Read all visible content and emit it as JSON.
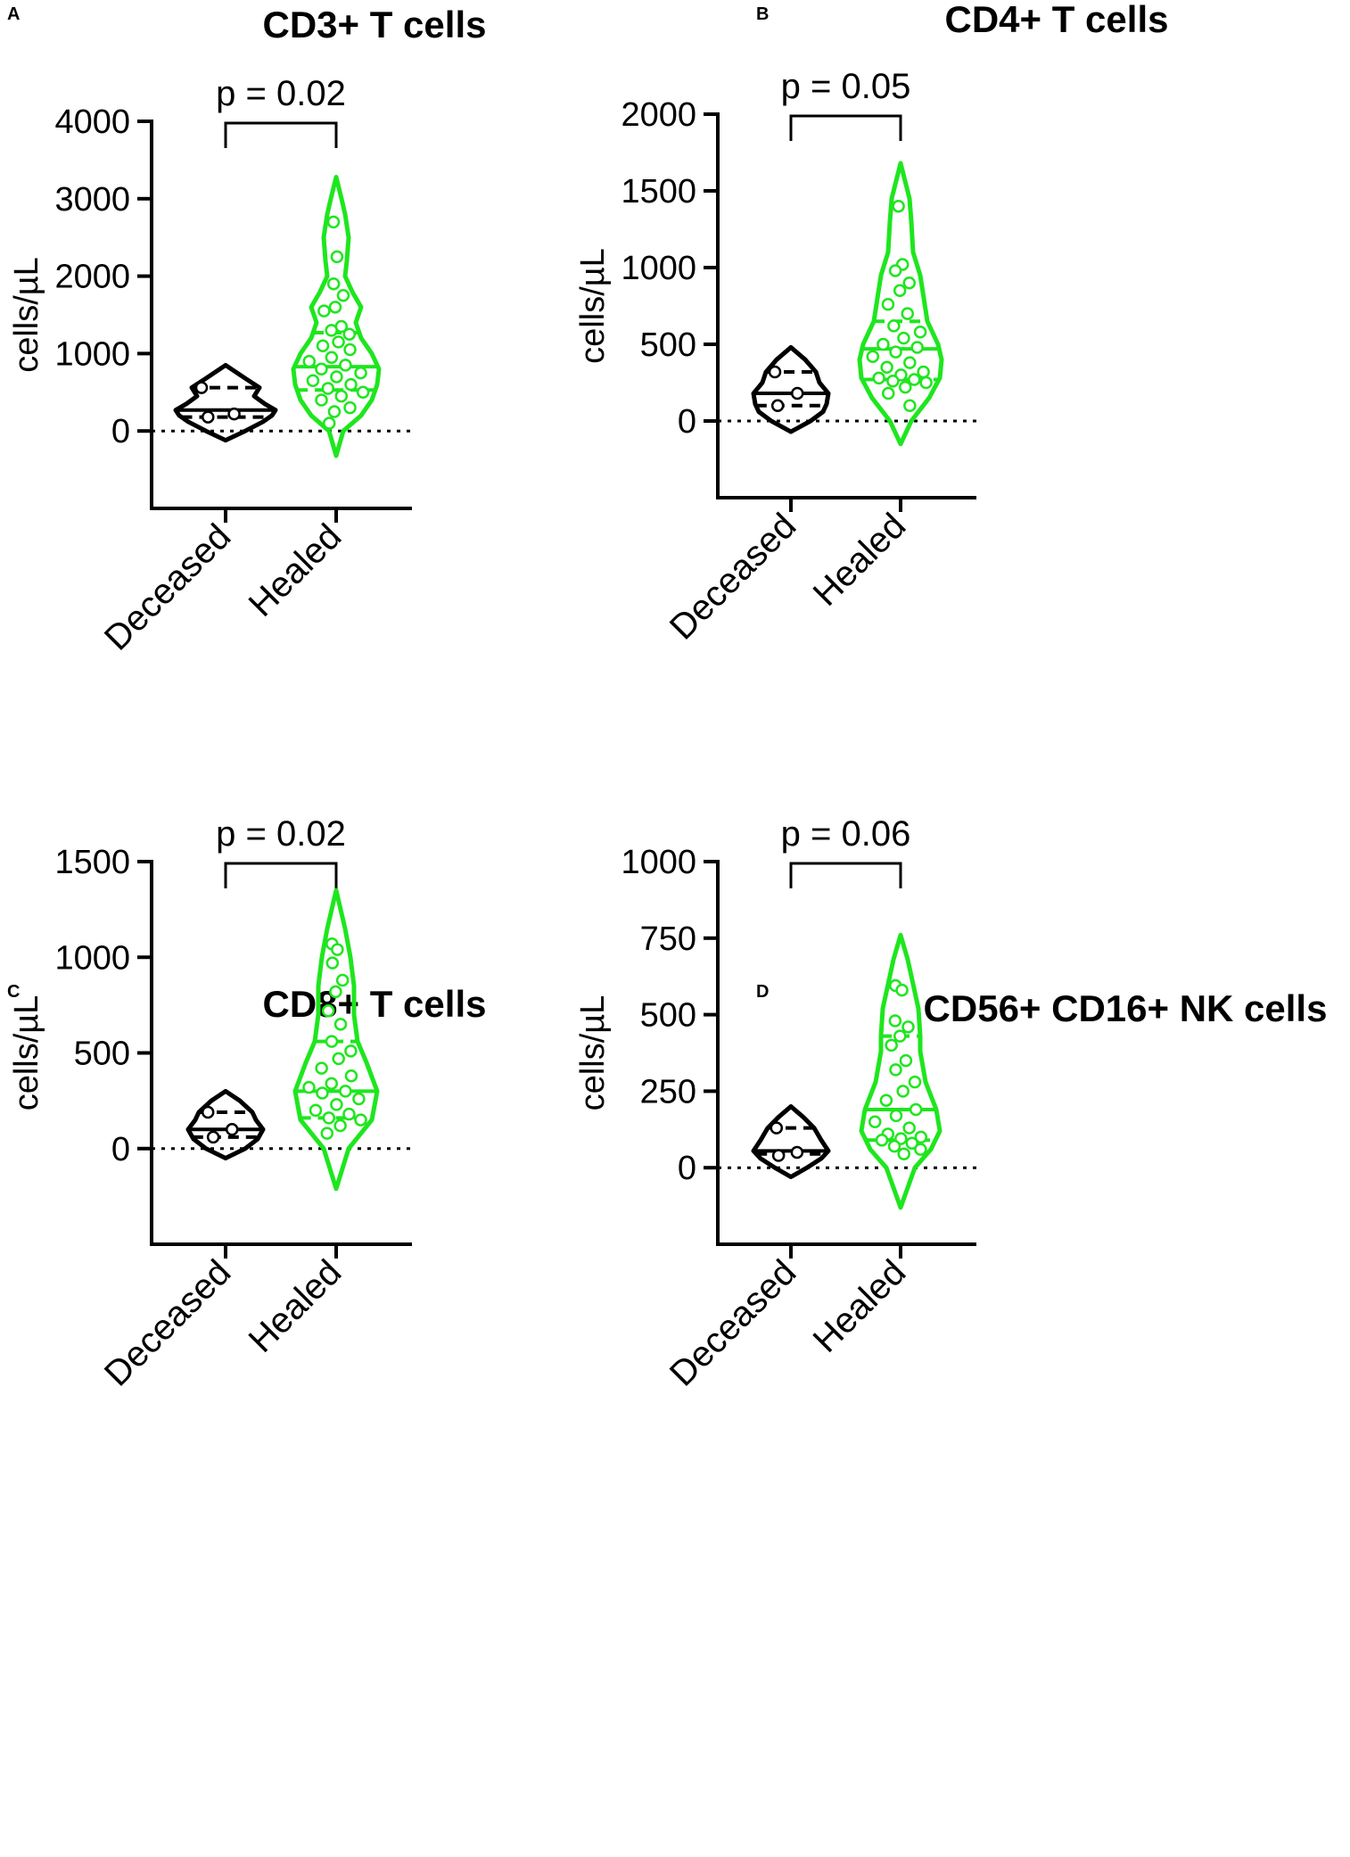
{
  "colors": {
    "deceased": "#000000",
    "healed": "#1ee61e",
    "axis": "#000000"
  },
  "chart_data": [
    {
      "panel": "A",
      "type": "violin",
      "title": "CD3+ T cells",
      "ylabel": "cells/µL",
      "categories": [
        "Deceased",
        "Healed"
      ],
      "yticks": [
        0,
        1000,
        2000,
        3000,
        4000
      ],
      "ylim": [
        -1000,
        4000
      ],
      "zero_line": true,
      "pvalue": "p = 0.02",
      "groups": [
        {
          "name": "Deceased",
          "points": [
            560,
            220,
            180
          ],
          "quartiles": [
            180,
            270,
            560
          ],
          "violin_range": [
            -120,
            850
          ],
          "density": [
            [
              -120,
              0
            ],
            [
              0,
              22
            ],
            [
              120,
              42
            ],
            [
              200,
              52
            ],
            [
              270,
              56
            ],
            [
              350,
              44
            ],
            [
              450,
              32
            ],
            [
              560,
              38
            ],
            [
              680,
              22
            ],
            [
              850,
              0
            ]
          ]
        },
        {
          "name": "Healed",
          "points": [
            2700,
            2250,
            1900,
            1750,
            1600,
            1550,
            1350,
            1300,
            1250,
            1150,
            1100,
            1050,
            950,
            900,
            850,
            800,
            750,
            700,
            650,
            600,
            550,
            500,
            450,
            400,
            300,
            250,
            100
          ],
          "quartiles": [
            530,
            830,
            1270
          ],
          "violin_range": [
            -320,
            3280
          ],
          "density": [
            [
              -320,
              0
            ],
            [
              0,
              8
            ],
            [
              200,
              28
            ],
            [
              400,
              40
            ],
            [
              600,
              46
            ],
            [
              800,
              48
            ],
            [
              1000,
              40
            ],
            [
              1200,
              28
            ],
            [
              1400,
              22
            ],
            [
              1600,
              28
            ],
            [
              1800,
              18
            ],
            [
              2000,
              10
            ],
            [
              2200,
              12
            ],
            [
              2500,
              14
            ],
            [
              2800,
              10
            ],
            [
              3000,
              6
            ],
            [
              3280,
              0
            ]
          ]
        }
      ]
    },
    {
      "panel": "B",
      "type": "violin",
      "title": "CD4+ T cells",
      "ylabel": "cells/µL",
      "categories": [
        "Deceased",
        "Healed"
      ],
      "yticks": [
        0,
        500,
        1000,
        1500,
        2000
      ],
      "ylim": [
        -500,
        2000
      ],
      "zero_line": true,
      "pvalue": "p = 0.05",
      "groups": [
        {
          "name": "Deceased",
          "points": [
            320,
            180,
            100
          ],
          "quartiles": [
            100,
            180,
            320
          ],
          "violin_range": [
            -70,
            480
          ],
          "density": [
            [
              -70,
              0
            ],
            [
              0,
              22
            ],
            [
              60,
              36
            ],
            [
              110,
              40
            ],
            [
              180,
              42
            ],
            [
              250,
              32
            ],
            [
              320,
              28
            ],
            [
              400,
              16
            ],
            [
              480,
              0
            ]
          ]
        },
        {
          "name": "Healed",
          "points": [
            1400,
            1020,
            980,
            900,
            850,
            760,
            700,
            620,
            580,
            540,
            500,
            480,
            450,
            420,
            380,
            350,
            320,
            300,
            280,
            270,
            260,
            250,
            220,
            180,
            100
          ],
          "quartiles": [
            270,
            470,
            650
          ],
          "violin_range": [
            -150,
            1680
          ],
          "density": [
            [
              -150,
              0
            ],
            [
              0,
              12
            ],
            [
              150,
              32
            ],
            [
              280,
              44
            ],
            [
              400,
              46
            ],
            [
              500,
              42
            ],
            [
              650,
              30
            ],
            [
              800,
              26
            ],
            [
              950,
              22
            ],
            [
              1100,
              14
            ],
            [
              1300,
              12
            ],
            [
              1450,
              10
            ],
            [
              1680,
              0
            ]
          ]
        }
      ]
    },
    {
      "panel": "C",
      "type": "violin",
      "title": "CD8+ T cells",
      "ylabel": "cells/µL",
      "categories": [
        "Deceased",
        "Healed"
      ],
      "yticks": [
        0,
        500,
        1000,
        1500
      ],
      "ylim": [
        -500,
        1500
      ],
      "zero_line": true,
      "pvalue": "p = 0.02",
      "groups": [
        {
          "name": "Deceased",
          "points": [
            190,
            100,
            60
          ],
          "quartiles": [
            60,
            100,
            190
          ],
          "violin_range": [
            -50,
            300
          ],
          "density": [
            [
              -50,
              0
            ],
            [
              0,
              22
            ],
            [
              50,
              36
            ],
            [
              100,
              42
            ],
            [
              150,
              34
            ],
            [
              190,
              30
            ],
            [
              250,
              16
            ],
            [
              300,
              0
            ]
          ]
        },
        {
          "name": "Healed",
          "points": [
            1070,
            1040,
            970,
            880,
            820,
            720,
            650,
            560,
            510,
            470,
            420,
            380,
            340,
            320,
            300,
            290,
            260,
            230,
            200,
            180,
            160,
            150,
            120,
            80
          ],
          "quartiles": [
            160,
            300,
            560
          ],
          "violin_range": [
            -210,
            1350
          ],
          "density": [
            [
              -210,
              0
            ],
            [
              0,
              14
            ],
            [
              150,
              40
            ],
            [
              300,
              46
            ],
            [
              450,
              34
            ],
            [
              560,
              24
            ],
            [
              700,
              20
            ],
            [
              850,
              20
            ],
            [
              1000,
              16
            ],
            [
              1150,
              10
            ],
            [
              1350,
              0
            ]
          ]
        }
      ]
    },
    {
      "panel": "D",
      "type": "violin",
      "title": "CD56+ CD16+ NK cells",
      "ylabel": "cells/µL",
      "categories": [
        "Deceased",
        "Healed"
      ],
      "yticks": [
        0,
        250,
        500,
        750,
        1000
      ],
      "ylim": [
        -250,
        1000
      ],
      "zero_line": true,
      "pvalue": "p = 0.06",
      "groups": [
        {
          "name": "Deceased",
          "points": [
            130,
            50,
            40
          ],
          "quartiles": [
            45,
            55,
            130
          ],
          "violin_range": [
            -30,
            200
          ],
          "density": [
            [
              -30,
              0
            ],
            [
              0,
              18
            ],
            [
              30,
              34
            ],
            [
              55,
              42
            ],
            [
              90,
              34
            ],
            [
              130,
              26
            ],
            [
              165,
              14
            ],
            [
              200,
              0
            ]
          ]
        },
        {
          "name": "Healed",
          "points": [
            595,
            580,
            480,
            460,
            430,
            400,
            350,
            320,
            280,
            250,
            220,
            190,
            170,
            150,
            130,
            110,
            100,
            95,
            90,
            80,
            70,
            60,
            45
          ],
          "quartiles": [
            90,
            190,
            430
          ],
          "violin_range": [
            -130,
            760
          ],
          "density": [
            [
              -130,
              0
            ],
            [
              0,
              16
            ],
            [
              60,
              34
            ],
            [
              120,
              44
            ],
            [
              190,
              40
            ],
            [
              280,
              28
            ],
            [
              380,
              22
            ],
            [
              430,
              22
            ],
            [
              520,
              20
            ],
            [
              600,
              14
            ],
            [
              680,
              8
            ],
            [
              760,
              0
            ]
          ]
        }
      ]
    }
  ]
}
